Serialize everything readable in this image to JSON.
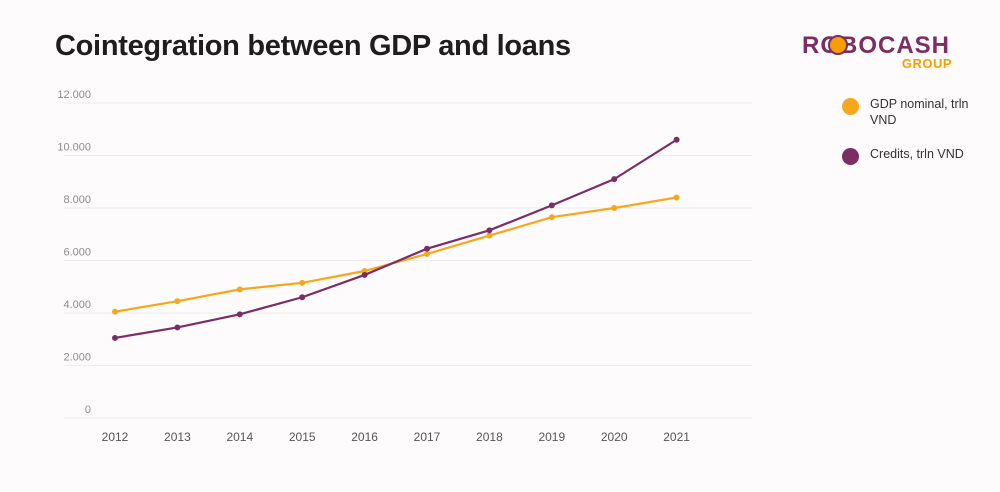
{
  "title": "Cointegration between GDP and loans",
  "logo": {
    "word": "ROBOCASH",
    "sub": "GROUP"
  },
  "colors": {
    "gdp": "#f6a71c",
    "credits": "#7b2d64",
    "grid": "#ececec"
  },
  "chart_data": {
    "type": "line",
    "title": "Cointegration between GDP and loans",
    "xlabel": "",
    "ylabel": "",
    "ylim": [
      0,
      12000
    ],
    "yticks": [
      0,
      2000,
      4000,
      6000,
      8000,
      10000,
      12000
    ],
    "ytick_labels": [
      "0",
      "2.000",
      "4.000",
      "6.000",
      "8.000",
      "10.000",
      "12.000"
    ],
    "x": [
      "2012",
      "2013",
      "2014",
      "2015",
      "2016",
      "2017",
      "2018",
      "2019",
      "2020",
      "2021"
    ],
    "grid": true,
    "legend_position": "right",
    "series": [
      {
        "name": "GDP nominal, trln VND",
        "color": "#f6a71c",
        "values": [
          4050,
          4450,
          4900,
          5150,
          5600,
          6250,
          6950,
          7650,
          8000,
          8400
        ]
      },
      {
        "name": "Credits, trln VND",
        "color": "#7b2d64",
        "values": [
          3050,
          3450,
          3950,
          4600,
          5450,
          6450,
          7150,
          8100,
          9100,
          10600
        ]
      }
    ]
  }
}
